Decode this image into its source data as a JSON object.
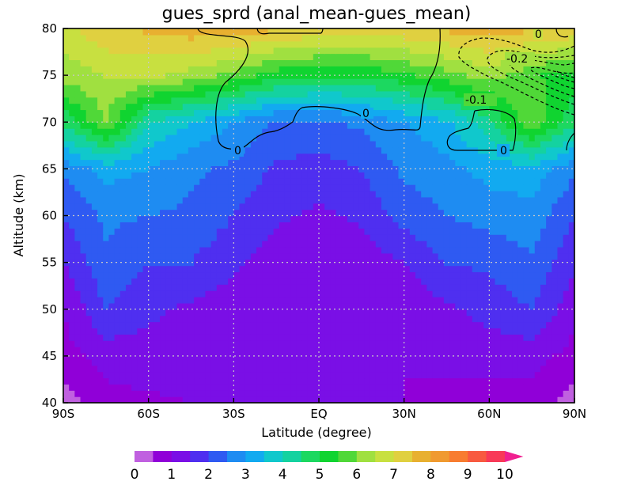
{
  "chart_data": {
    "type": "heatmap",
    "title": "gues_sprd (anal_mean-gues_mean)",
    "xlabel": "Latitude (degree)",
    "ylabel": "Altitude (km)",
    "x_ticks": [
      "90S",
      "60S",
      "30S",
      "EQ",
      "30N",
      "60N",
      "90N"
    ],
    "x_range": [
      -90,
      90
    ],
    "y_ticks": [
      "40",
      "45",
      "50",
      "55",
      "60",
      "65",
      "70",
      "75",
      "80"
    ],
    "y_range": [
      40,
      80
    ],
    "grid": true,
    "colorbar": {
      "position": "bottom",
      "levels": [
        0,
        0.5,
        1,
        1.5,
        2,
        2.5,
        3,
        3.5,
        4,
        4.5,
        5,
        5.5,
        6,
        6.5,
        7,
        7.5,
        8,
        8.5,
        9,
        9.5,
        10
      ],
      "tick_labels": [
        "0",
        "1",
        "2",
        "3",
        "4",
        "5",
        "6",
        "7",
        "8",
        "9",
        "10"
      ],
      "colors": [
        "#c060e0",
        "#9000d8",
        "#7a0fe6",
        "#4f2ff0",
        "#2f5af2",
        "#1e8cf2",
        "#12aaf0",
        "#10c8cc",
        "#14d2a0",
        "#1cd860",
        "#10d430",
        "#50d838",
        "#a0e040",
        "#c8e040",
        "#e0d040",
        "#e8b030",
        "#f09a30",
        "#f87c30",
        "#f85a40",
        "#f83a58",
        "#f02090"
      ],
      "extend_arrow": "right"
    },
    "fields": [
      {
        "name": "gues_sprd",
        "kind": "shaded",
        "grid_x": [
          -90,
          -75,
          -60,
          -45,
          -30,
          -15,
          0,
          15,
          30,
          45,
          60,
          75,
          90
        ],
        "grid_y": [
          40,
          45,
          50,
          55,
          60,
          65,
          70,
          75,
          80
        ],
        "values": [
          [
            0.3,
            0.8,
            0.9,
            1.0,
            1.0,
            1.0,
            1.0,
            1.0,
            1.0,
            0.9,
            0.8,
            0.7,
            0.3
          ],
          [
            0.8,
            1.2,
            1.3,
            1.2,
            1.0,
            1.0,
            1.0,
            1.0,
            1.0,
            1.1,
            1.2,
            1.2,
            0.8
          ],
          [
            1.0,
            2.0,
            1.6,
            1.4,
            1.2,
            1.1,
            1.0,
            1.1,
            1.1,
            1.4,
            1.7,
            2.0,
            1.2
          ],
          [
            1.5,
            2.4,
            2.0,
            2.0,
            1.6,
            1.2,
            1.1,
            1.2,
            1.5,
            2.0,
            2.1,
            2.4,
            1.6
          ],
          [
            2.0,
            2.6,
            2.5,
            2.4,
            2.0,
            1.6,
            1.4,
            1.6,
            2.2,
            2.5,
            2.7,
            2.8,
            2.0
          ],
          [
            2.6,
            3.2,
            3.0,
            2.6,
            2.4,
            1.9,
            1.8,
            2.0,
            2.6,
            2.8,
            3.2,
            3.3,
            2.6
          ],
          [
            4.6,
            6.0,
            4.0,
            3.5,
            3.0,
            2.4,
            2.4,
            2.6,
            3.0,
            3.4,
            4.4,
            6.0,
            4.6
          ],
          [
            6.2,
            6.5,
            6.6,
            6.3,
            5.8,
            5.2,
            5.0,
            5.0,
            5.4,
            5.8,
            6.2,
            5.6,
            5.2
          ],
          [
            6.8,
            7.4,
            7.6,
            7.8,
            7.8,
            7.6,
            7.4,
            7.4,
            7.4,
            7.6,
            7.8,
            7.6,
            7.4
          ]
        ]
      },
      {
        "name": "anal_mean-gues_mean",
        "kind": "contour",
        "levels": [
          -0.2,
          -0.1,
          0
        ],
        "contour_labels": [
          "-0.2",
          "-0.1",
          "0",
          "0",
          "0",
          "0"
        ]
      }
    ]
  }
}
